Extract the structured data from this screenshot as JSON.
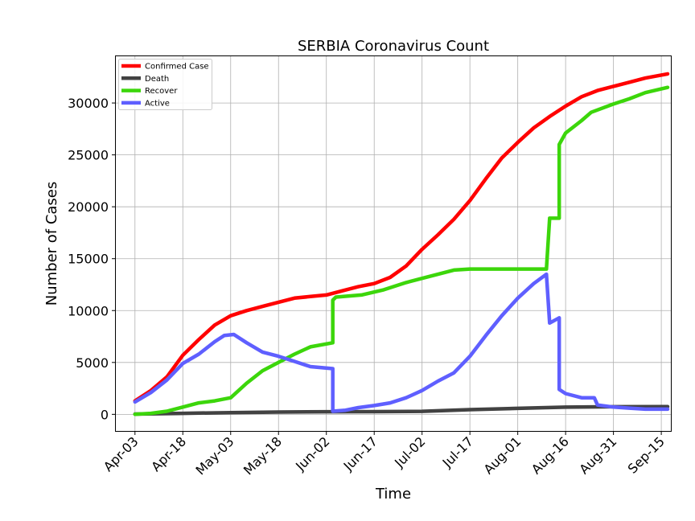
{
  "chart_data": {
    "type": "line",
    "title": "SERBIA Coronavirus Count",
    "xlabel": "Time",
    "ylabel": "Number of Cases",
    "x_tick_labels": [
      "Apr-03",
      "Apr-18",
      "May-03",
      "May-18",
      "Jun-02",
      "Jun-17",
      "Jul-02",
      "Jul-17",
      "Aug-01",
      "Aug-16",
      "Aug-31",
      "Sep-15"
    ],
    "y_ticks": [
      0,
      5000,
      10000,
      15000,
      20000,
      25000,
      30000
    ],
    "ylim": [
      -1600,
      34500
    ],
    "xlim": [
      "Mar-28",
      "Sep-18"
    ],
    "grid": true,
    "legend_position": "top-left",
    "series": [
      {
        "name": "Confirmed Case",
        "color": "#ff0000",
        "points": [
          [
            "Apr-03",
            1300
          ],
          [
            "Apr-08",
            2300
          ],
          [
            "Apr-13",
            3600
          ],
          [
            "Apr-18",
            5700
          ],
          [
            "Apr-23",
            7200
          ],
          [
            "Apr-28",
            8600
          ],
          [
            "May-03",
            9500
          ],
          [
            "May-08",
            10000
          ],
          [
            "May-13",
            10400
          ],
          [
            "May-18",
            10800
          ],
          [
            "May-23",
            11200
          ],
          [
            "May-28",
            11350
          ],
          [
            "Jun-02",
            11500
          ],
          [
            "Jun-07",
            11900
          ],
          [
            "Jun-12",
            12300
          ],
          [
            "Jun-17",
            12600
          ],
          [
            "Jun-22",
            13200
          ],
          [
            "Jun-27",
            14300
          ],
          [
            "Jul-02",
            15900
          ],
          [
            "Jul-07",
            17300
          ],
          [
            "Jul-12",
            18800
          ],
          [
            "Jul-17",
            20600
          ],
          [
            "Jul-22",
            22700
          ],
          [
            "Jul-27",
            24700
          ],
          [
            "Aug-01",
            26200
          ],
          [
            "Aug-06",
            27600
          ],
          [
            "Aug-11",
            28700
          ],
          [
            "Aug-16",
            29700
          ],
          [
            "Aug-21",
            30600
          ],
          [
            "Aug-26",
            31200
          ],
          [
            "Aug-31",
            31600
          ],
          [
            "Sep-05",
            32000
          ],
          [
            "Sep-10",
            32400
          ],
          [
            "Sep-17",
            32800
          ]
        ]
      },
      {
        "name": "Death",
        "color": "#424242",
        "points": [
          [
            "Apr-03",
            30
          ],
          [
            "Apr-18",
            100
          ],
          [
            "May-03",
            170
          ],
          [
            "May-18",
            220
          ],
          [
            "Jun-02",
            250
          ],
          [
            "Jun-17",
            260
          ],
          [
            "Jul-02",
            290
          ],
          [
            "Jul-17",
            450
          ],
          [
            "Aug-01",
            580
          ],
          [
            "Aug-16",
            690
          ],
          [
            "Aug-31",
            730
          ],
          [
            "Sep-17",
            750
          ]
        ]
      },
      {
        "name": "Recover",
        "color": "#3cd60b",
        "points": [
          [
            "Apr-03",
            0
          ],
          [
            "Apr-08",
            100
          ],
          [
            "Apr-13",
            300
          ],
          [
            "Apr-18",
            700
          ],
          [
            "Apr-23",
            1100
          ],
          [
            "Apr-28",
            1300
          ],
          [
            "May-03",
            1600
          ],
          [
            "May-08",
            3000
          ],
          [
            "May-13",
            4200
          ],
          [
            "May-18",
            5000
          ],
          [
            "May-23",
            5800
          ],
          [
            "May-28",
            6500
          ],
          [
            "Jun-04",
            6900
          ],
          [
            "Jun-04",
            11000
          ],
          [
            "Jun-05",
            11300
          ],
          [
            "Jun-13",
            11500
          ],
          [
            "Jun-20",
            12000
          ],
          [
            "Jun-27",
            12700
          ],
          [
            "Jul-02",
            13100
          ],
          [
            "Jul-07",
            13500
          ],
          [
            "Jul-12",
            13900
          ],
          [
            "Jul-17",
            14000
          ],
          [
            "Aug-10",
            14000
          ],
          [
            "Aug-11",
            18900
          ],
          [
            "Aug-14",
            18900
          ],
          [
            "Aug-14",
            26000
          ],
          [
            "Aug-16",
            27100
          ],
          [
            "Aug-21",
            28300
          ],
          [
            "Aug-24",
            29100
          ],
          [
            "Aug-31",
            29900
          ],
          [
            "Sep-05",
            30400
          ],
          [
            "Sep-10",
            31000
          ],
          [
            "Sep-17",
            31500
          ]
        ]
      },
      {
        "name": "Active",
        "color": "#5f5fff",
        "points": [
          [
            "Apr-03",
            1200
          ],
          [
            "Apr-08",
            2100
          ],
          [
            "Apr-13",
            3300
          ],
          [
            "Apr-18",
            4900
          ],
          [
            "Apr-23",
            5800
          ],
          [
            "Apr-28",
            7000
          ],
          [
            "May-01",
            7600
          ],
          [
            "May-04",
            7700
          ],
          [
            "May-08",
            6900
          ],
          [
            "May-13",
            6000
          ],
          [
            "May-18",
            5600
          ],
          [
            "May-23",
            5100
          ],
          [
            "May-28",
            4600
          ],
          [
            "Jun-04",
            4400
          ],
          [
            "Jun-04",
            300
          ],
          [
            "Jun-08",
            400
          ],
          [
            "Jun-12",
            650
          ],
          [
            "Jun-17",
            850
          ],
          [
            "Jun-22",
            1100
          ],
          [
            "Jun-27",
            1600
          ],
          [
            "Jul-02",
            2300
          ],
          [
            "Jul-07",
            3200
          ],
          [
            "Jul-12",
            4000
          ],
          [
            "Jul-17",
            5600
          ],
          [
            "Jul-22",
            7600
          ],
          [
            "Jul-27",
            9500
          ],
          [
            "Aug-01",
            11200
          ],
          [
            "Aug-06",
            12600
          ],
          [
            "Aug-10",
            13500
          ],
          [
            "Aug-11",
            8800
          ],
          [
            "Aug-14",
            9300
          ],
          [
            "Aug-14",
            2400
          ],
          [
            "Aug-16",
            2000
          ],
          [
            "Aug-21",
            1600
          ],
          [
            "Aug-25",
            1600
          ],
          [
            "Aug-26",
            900
          ],
          [
            "Aug-31",
            700
          ],
          [
            "Sep-05",
            600
          ],
          [
            "Sep-10",
            500
          ],
          [
            "Sep-17",
            500
          ]
        ]
      }
    ]
  }
}
